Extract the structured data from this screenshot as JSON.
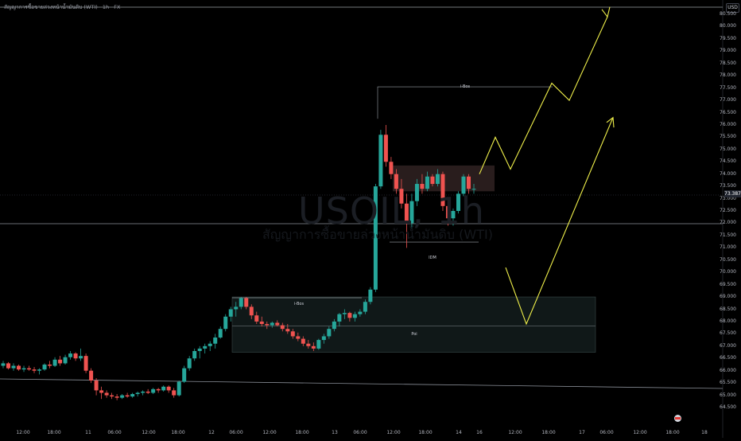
{
  "header": {
    "symbol_title": "สัญญาการซื้อขายล่วงหน้าน้ำมันดิบ (WTI)",
    "timeframe": "1h",
    "exchange": "FX"
  },
  "watermark": {
    "symbol": "USOIL, 1h",
    "name": "สัญญาการซื้อขายล่วงหน้าน้ำมันดิบ (WTI)"
  },
  "currency": "USD",
  "current_price": "73.387",
  "price_axis": [
    "80.500",
    "80.000",
    "79.500",
    "79.000",
    "78.500",
    "78.000",
    "77.500",
    "77.000",
    "76.500",
    "76.000",
    "75.500",
    "75.000",
    "74.500",
    "74.000",
    "73.500",
    "73.000",
    "72.500",
    "72.000",
    "71.500",
    "71.000",
    "70.500",
    "70.000",
    "69.500",
    "69.000",
    "68.500",
    "68.000",
    "67.500",
    "67.000",
    "66.500",
    "66.000",
    "65.500",
    "65.000",
    "64.500"
  ],
  "time_axis": [
    "12:00",
    "18:00",
    "11",
    "06:00",
    "12:00",
    "18:00",
    "12",
    "06:00",
    "12:00",
    "18:00",
    "13",
    "06:00",
    "12:00",
    "18:00",
    "14",
    "16",
    "12:00",
    "18:00",
    "17",
    "06:00",
    "12:00",
    "18:00",
    "18"
  ],
  "annotations": {
    "upper_ibos": "i-Bos",
    "idm": "IDM",
    "lower_ibos": "i-Bos",
    "poi": "Poi"
  },
  "colors": {
    "background": "#000000",
    "bull": "#26a69a",
    "bear": "#ef5350",
    "projection": "#f0f04a",
    "zone": "#1e2b2b",
    "supply_zone": "#3a2a2a"
  },
  "chart_data": {
    "type": "candlestick",
    "series": [
      {
        "name": "USOIL",
        "candles": [
          [
            66.2,
            66.4,
            66.1,
            66.3
          ],
          [
            66.3,
            66.35,
            66.05,
            66.1
          ],
          [
            66.1,
            66.3,
            66.0,
            66.2
          ],
          [
            66.2,
            66.25,
            66.0,
            66.05
          ],
          [
            66.05,
            66.2,
            65.95,
            66.1
          ],
          [
            66.1,
            66.2,
            66.0,
            66.05
          ],
          [
            66.05,
            66.15,
            65.9,
            66.0
          ],
          [
            66.0,
            66.1,
            65.85,
            66.05
          ],
          [
            66.05,
            66.3,
            66.0,
            66.25
          ],
          [
            66.25,
            66.4,
            66.1,
            66.2
          ],
          [
            66.2,
            66.55,
            66.15,
            66.45
          ],
          [
            66.45,
            66.6,
            66.2,
            66.3
          ],
          [
            66.3,
            66.65,
            66.25,
            66.55
          ],
          [
            66.55,
            66.8,
            66.45,
            66.7
          ],
          [
            66.7,
            66.75,
            66.4,
            66.5
          ],
          [
            66.5,
            66.9,
            66.4,
            66.6
          ],
          [
            66.6,
            66.7,
            65.9,
            66.0
          ],
          [
            66.0,
            66.1,
            65.5,
            65.6
          ],
          [
            65.6,
            65.7,
            65.0,
            65.2
          ],
          [
            65.2,
            65.35,
            64.85,
            65.1
          ],
          [
            65.1,
            65.2,
            64.9,
            65.0
          ],
          [
            65.0,
            65.1,
            64.85,
            64.95
          ],
          [
            64.95,
            65.05,
            64.8,
            64.9
          ],
          [
            64.9,
            65.05,
            64.85,
            65.0
          ],
          [
            65.0,
            65.1,
            64.9,
            64.95
          ],
          [
            64.95,
            65.1,
            64.9,
            65.05
          ],
          [
            65.05,
            65.15,
            64.95,
            65.1
          ],
          [
            65.1,
            65.2,
            65.0,
            65.15
          ],
          [
            65.15,
            65.25,
            65.05,
            65.1
          ],
          [
            65.1,
            65.3,
            65.05,
            65.25
          ],
          [
            65.25,
            65.3,
            65.1,
            65.2
          ],
          [
            65.2,
            65.4,
            65.15,
            65.35
          ],
          [
            65.35,
            65.4,
            65.1,
            65.2
          ],
          [
            65.2,
            65.3,
            64.9,
            65.0
          ],
          [
            65.0,
            65.6,
            64.95,
            65.55
          ],
          [
            65.55,
            66.2,
            65.5,
            66.1
          ],
          [
            66.1,
            66.6,
            66.0,
            66.5
          ],
          [
            66.5,
            66.9,
            66.4,
            66.8
          ],
          [
            66.8,
            67.0,
            66.5,
            66.9
          ],
          [
            66.9,
            67.1,
            66.7,
            67.0
          ],
          [
            67.0,
            67.2,
            66.8,
            67.1
          ],
          [
            67.1,
            67.5,
            66.9,
            67.35
          ],
          [
            67.35,
            67.8,
            67.3,
            67.7
          ],
          [
            67.7,
            68.3,
            67.6,
            68.2
          ],
          [
            68.2,
            68.6,
            68.0,
            68.5
          ],
          [
            68.5,
            68.8,
            68.2,
            68.6
          ],
          [
            68.6,
            69.0,
            68.5,
            68.95
          ],
          [
            68.95,
            69.0,
            68.5,
            68.6
          ],
          [
            68.6,
            68.7,
            68.1,
            68.25
          ],
          [
            68.25,
            68.4,
            67.9,
            68.0
          ],
          [
            68.0,
            68.2,
            67.8,
            67.9
          ],
          [
            67.9,
            68.0,
            67.7,
            67.85
          ],
          [
            67.85,
            68.0,
            67.75,
            67.95
          ],
          [
            67.95,
            68.05,
            67.8,
            67.85
          ],
          [
            67.85,
            67.95,
            67.6,
            67.7
          ],
          [
            67.7,
            67.9,
            67.5,
            67.6
          ],
          [
            67.6,
            67.7,
            67.3,
            67.4
          ],
          [
            67.4,
            67.55,
            67.2,
            67.3
          ],
          [
            67.3,
            67.4,
            67.0,
            67.1
          ],
          [
            67.1,
            67.25,
            66.9,
            67.0
          ],
          [
            67.0,
            67.15,
            66.8,
            66.9
          ],
          [
            66.9,
            67.3,
            66.85,
            67.25
          ],
          [
            67.25,
            67.5,
            67.1,
            67.4
          ],
          [
            67.4,
            67.8,
            67.3,
            67.7
          ],
          [
            67.7,
            68.1,
            67.6,
            68.0
          ],
          [
            68.0,
            68.35,
            67.8,
            68.3
          ],
          [
            68.3,
            68.5,
            68.1,
            68.35
          ],
          [
            68.35,
            68.4,
            68.0,
            68.15
          ],
          [
            68.15,
            68.4,
            68.0,
            68.3
          ],
          [
            68.3,
            68.5,
            68.2,
            68.4
          ],
          [
            68.4,
            68.9,
            68.3,
            68.8
          ],
          [
            68.8,
            69.4,
            68.7,
            69.3
          ],
          [
            69.3,
            73.6,
            69.2,
            73.5
          ],
          [
            73.5,
            75.8,
            73.4,
            75.6
          ],
          [
            75.6,
            76.0,
            74.3,
            74.5
          ],
          [
            74.5,
            74.7,
            73.8,
            74.0
          ],
          [
            74.0,
            74.2,
            73.2,
            73.4
          ],
          [
            73.4,
            73.8,
            72.6,
            72.8
          ],
          [
            72.8,
            73.2,
            71.0,
            72.0
          ],
          [
            72.0,
            73.2,
            71.8,
            72.9
          ],
          [
            72.9,
            73.8,
            72.7,
            73.6
          ],
          [
            73.6,
            74.0,
            73.2,
            73.4
          ],
          [
            73.4,
            74.1,
            73.3,
            73.9
          ],
          [
            73.9,
            74.0,
            73.5,
            73.6
          ],
          [
            73.6,
            74.2,
            73.5,
            74.0
          ],
          [
            74.0,
            74.1,
            72.5,
            72.7
          ],
          [
            72.7,
            72.9,
            71.9,
            72.2
          ],
          [
            72.2,
            72.6,
            71.9,
            72.5
          ],
          [
            72.5,
            73.3,
            72.4,
            73.2
          ],
          [
            73.2,
            74.0,
            73.1,
            73.9
          ],
          [
            73.9,
            74.0,
            73.2,
            73.4
          ],
          [
            73.4,
            73.6,
            73.2,
            73.4
          ]
        ]
      }
    ],
    "levels": [
      {
        "label": "i-Bos",
        "price": 77.55
      },
      {
        "label": "IDM",
        "price": 71.3
      },
      {
        "label": "i-Bos",
        "price": 69.0
      },
      {
        "label": "Poi",
        "price": 67.85
      }
    ],
    "zones": [
      {
        "name": "poi",
        "from": 66.75,
        "to": 69.0
      },
      {
        "name": "supply",
        "from": 73.3,
        "to": 74.35
      }
    ],
    "projections": [
      {
        "name": "path-upper",
        "points": [
          [
            74.0
          ],
          [
            75.5
          ],
          [
            74.2
          ],
          [
            77.7
          ],
          [
            77.0
          ],
          [
            80.4
          ]
        ]
      },
      {
        "name": "path-lower",
        "points": [
          [
            70.2
          ],
          [
            67.9
          ],
          [
            76.3
          ]
        ]
      }
    ]
  }
}
